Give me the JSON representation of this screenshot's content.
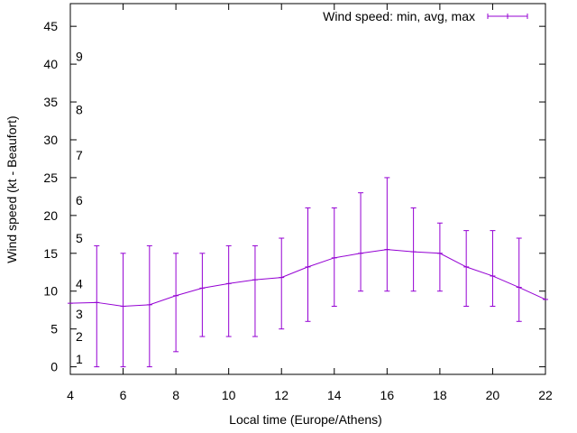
{
  "chart_data": {
    "type": "line",
    "xlabel": "Local time (Europe/Athens)",
    "ylabel": "Wind speed (kt - Beaufort)",
    "xlim": [
      4,
      22
    ],
    "ylim": [
      -1,
      48
    ],
    "x_ticks": [
      4,
      6,
      8,
      10,
      12,
      14,
      16,
      18,
      20,
      22
    ],
    "y_ticks": [
      0,
      5,
      10,
      15,
      20,
      25,
      30,
      35,
      40,
      45
    ],
    "grid": false,
    "legend_position": "top-right",
    "beaufort_labels": [
      {
        "label": "1",
        "value": 1
      },
      {
        "label": "2",
        "value": 4
      },
      {
        "label": "3",
        "value": 7
      },
      {
        "label": "4",
        "value": 11
      },
      {
        "label": "5",
        "value": 17
      },
      {
        "label": "6",
        "value": 22
      },
      {
        "label": "7",
        "value": 28
      },
      {
        "label": "8",
        "value": 34
      },
      {
        "label": "9",
        "value": 41
      }
    ],
    "series": [
      {
        "name": "Wind speed: min, avg, max",
        "color": "#9400d3",
        "x": [
          4,
          5,
          6,
          7,
          8,
          9,
          10,
          11,
          12,
          13,
          14,
          15,
          16,
          17,
          18,
          19,
          20,
          21,
          22
        ],
        "avg": [
          8.4,
          8.5,
          8,
          8.2,
          9.4,
          10.4,
          11,
          11.5,
          11.8,
          13.2,
          14.4,
          15,
          15.5,
          15.2,
          15,
          13.2,
          12,
          10.5,
          8.9
        ],
        "min": [
          null,
          0,
          0,
          0,
          2,
          4,
          4,
          4,
          5,
          6,
          8,
          10,
          10,
          10,
          10,
          8,
          8,
          6,
          null
        ],
        "max": [
          null,
          16,
          15,
          16,
          15,
          15,
          16,
          16,
          17,
          21,
          21,
          23,
          25,
          21,
          19,
          18,
          18,
          17,
          null
        ]
      }
    ]
  }
}
